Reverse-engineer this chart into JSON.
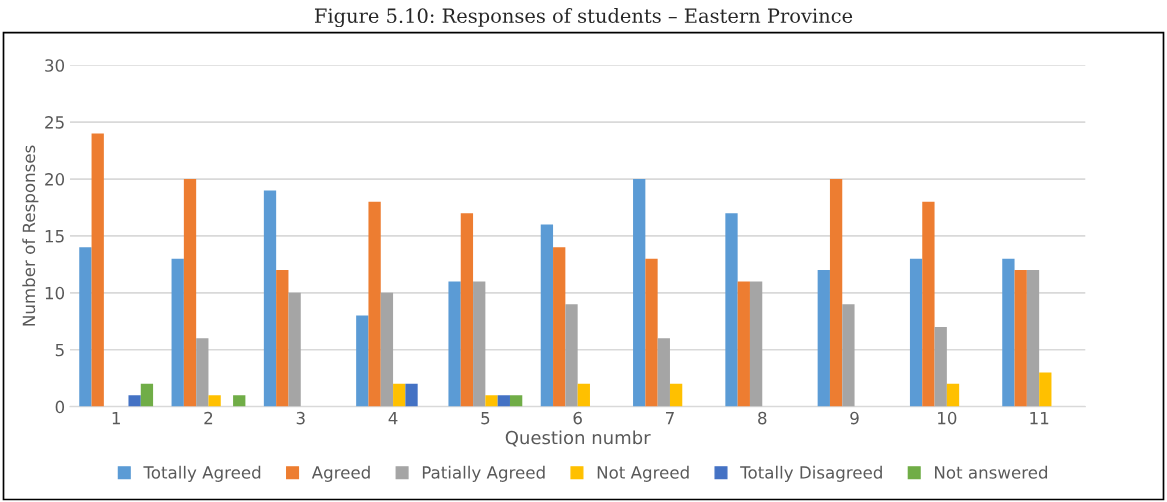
{
  "chart_data": {
    "type": "bar",
    "title": "Figure 5.10: Responses of students – Eastern Province",
    "xlabel": "Question numbr",
    "ylabel": "Number of Responses",
    "categories": [
      "1",
      "2",
      "3",
      "4",
      "5",
      "6",
      "7",
      "8",
      "9",
      "10",
      "11"
    ],
    "series": [
      {
        "name": "Totally Agreed",
        "color": "#5b9bd5",
        "values": [
          14,
          13,
          19,
          8,
          11,
          16,
          20,
          17,
          12,
          13,
          13
        ]
      },
      {
        "name": "Agreed",
        "color": "#ed7d31",
        "values": [
          24,
          20,
          12,
          18,
          17,
          14,
          13,
          11,
          20,
          18,
          12
        ]
      },
      {
        "name": "Patially Agreed",
        "color": "#a5a5a5",
        "values": [
          0,
          6,
          10,
          10,
          11,
          9,
          6,
          11,
          9,
          7,
          12
        ]
      },
      {
        "name": "Not Agreed",
        "color": "#ffc000",
        "values": [
          0,
          1,
          0,
          2,
          1,
          2,
          2,
          0,
          0,
          2,
          3
        ]
      },
      {
        "name": "Totally Disagreed",
        "color": "#4472c4",
        "values": [
          1,
          0,
          0,
          2,
          1,
          0,
          0,
          0,
          0,
          0,
          0
        ]
      },
      {
        "name": "Not answered",
        "color": "#70ad47",
        "values": [
          2,
          1,
          0,
          0,
          1,
          0,
          0,
          0,
          0,
          0,
          0
        ]
      }
    ],
    "ylim": [
      0,
      30
    ],
    "yticks": [
      0,
      5,
      10,
      15,
      20,
      25,
      30
    ],
    "grid": "y",
    "legend": "bottom"
  }
}
